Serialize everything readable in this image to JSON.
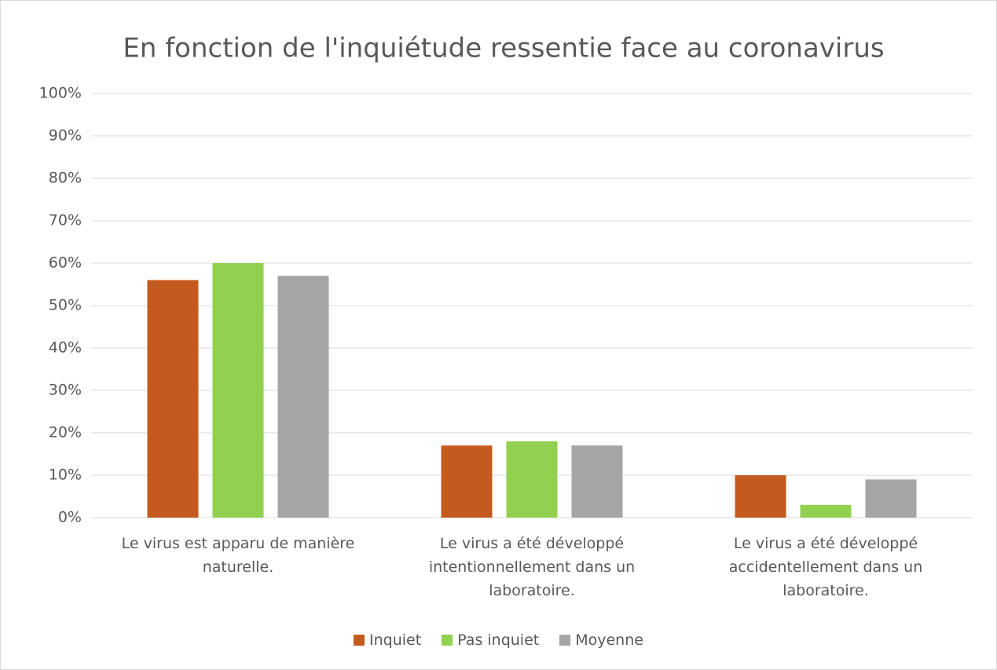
{
  "chart_data": {
    "type": "bar",
    "title": "En fonction de l'inquiétude ressentie face au coronavirus",
    "categories": [
      "Le virus est apparu de manière naturelle.",
      "Le virus a été développé intentionnellement dans un laboratoire.",
      "Le virus a été développé accidentellement dans un laboratoire."
    ],
    "series": [
      {
        "name": "Inquiet",
        "color": "#c55a1e",
        "values": [
          56,
          17,
          10
        ]
      },
      {
        "name": "Pas inquiet",
        "color": "#92d050",
        "values": [
          60,
          18,
          3
        ]
      },
      {
        "name": "Moyenne",
        "color": "#a5a5a5",
        "values": [
          57,
          17,
          9
        ]
      }
    ],
    "ylim": [
      0,
      100
    ],
    "yticks": [
      {
        "value": 0,
        "label": "0%"
      },
      {
        "value": 10,
        "label": "10%"
      },
      {
        "value": 20,
        "label": "20%"
      },
      {
        "value": 30,
        "label": "30%"
      },
      {
        "value": 40,
        "label": "40%"
      },
      {
        "value": 50,
        "label": "50%"
      },
      {
        "value": 60,
        "label": "60%"
      },
      {
        "value": 70,
        "label": "70%"
      },
      {
        "value": 80,
        "label": "80%"
      },
      {
        "value": 90,
        "label": "90%"
      },
      {
        "value": 100,
        "label": "100%"
      }
    ],
    "grid": true,
    "legend": "bottom"
  }
}
